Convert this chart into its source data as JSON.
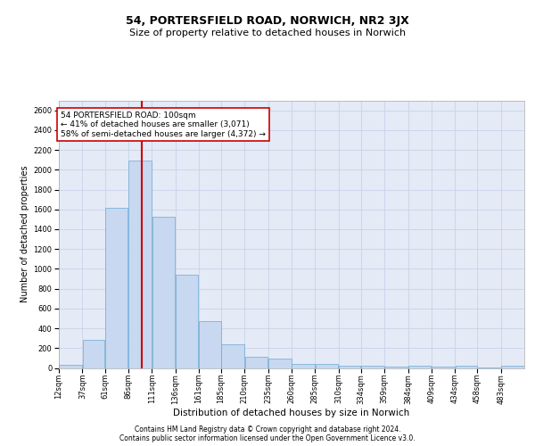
{
  "title1": "54, PORTERSFIELD ROAD, NORWICH, NR2 3JX",
  "title2": "Size of property relative to detached houses in Norwich",
  "xlabel": "Distribution of detached houses by size in Norwich",
  "ylabel": "Number of detached properties",
  "footnote1": "Contains HM Land Registry data © Crown copyright and database right 2024.",
  "footnote2": "Contains public sector information licensed under the Open Government Licence v3.0.",
  "annotation_line1": "54 PORTERSFIELD ROAD: 100sqm",
  "annotation_line2": "← 41% of detached houses are smaller (3,071)",
  "annotation_line3": "58% of semi-detached houses are larger (4,372) →",
  "bar_color": "#c8d8f0",
  "bar_edge_color": "#6aaad4",
  "red_line_x": 100,
  "bins": [
    12,
    37,
    61,
    86,
    111,
    136,
    161,
    185,
    210,
    235,
    260,
    285,
    310,
    334,
    359,
    384,
    409,
    434,
    458,
    483,
    508
  ],
  "bar_heights": [
    30,
    280,
    1620,
    2090,
    1530,
    940,
    470,
    235,
    110,
    95,
    40,
    40,
    25,
    20,
    15,
    20,
    15,
    20,
    5,
    25
  ],
  "ylim": [
    0,
    2700
  ],
  "yticks": [
    0,
    200,
    400,
    600,
    800,
    1000,
    1200,
    1400,
    1600,
    1800,
    2000,
    2200,
    2400,
    2600
  ],
  "grid_color": "#c8d4e8",
  "bg_color": "#e4eaf6",
  "red_color": "#cc0000",
  "title1_fontsize": 9,
  "title2_fontsize": 8,
  "xlabel_fontsize": 7.5,
  "ylabel_fontsize": 7,
  "tick_fontsize": 6,
  "annotation_fontsize": 6.5,
  "footnote_fontsize": 5.5
}
